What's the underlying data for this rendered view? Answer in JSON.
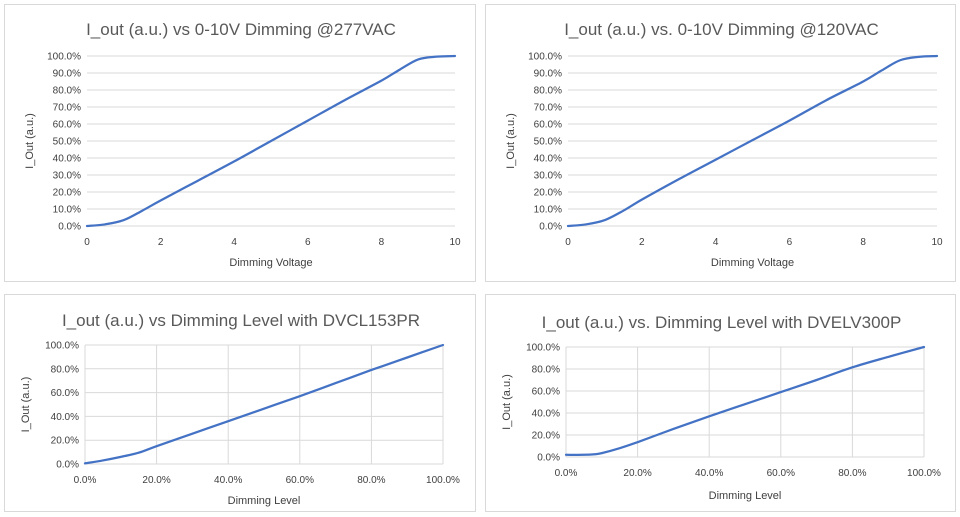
{
  "chart_data": [
    {
      "type": "line",
      "title": "I_out (a.u.) vs 0-10V Dimming @277VAC",
      "xlabel": "Dimming Voltage",
      "ylabel": "I_Out (a.u.)",
      "xlim": [
        0,
        10
      ],
      "ylim": [
        0,
        100
      ],
      "xticks": [
        "0",
        "2",
        "4",
        "6",
        "8",
        "10"
      ],
      "yticks": [
        "0.0%",
        "10.0%",
        "20.0%",
        "30.0%",
        "40.0%",
        "50.0%",
        "60.0%",
        "70.0%",
        "80.0%",
        "90.0%",
        "100.0%"
      ],
      "grid": "horizontal",
      "legend": "none",
      "series": [
        {
          "x": [
            0,
            0.5,
            1,
            1.5,
            2,
            3,
            4,
            5,
            6,
            7,
            8,
            8.5,
            9,
            9.5,
            10
          ],
          "y": [
            0,
            1,
            3.5,
            9,
            15,
            26.5,
            38,
            50,
            62,
            74,
            85.5,
            92,
            98,
            99.6,
            100
          ]
        }
      ]
    },
    {
      "type": "line",
      "title": "I_out (a.u.) vs. 0-10V Dimming @120VAC",
      "xlabel": "Dimming Voltage",
      "ylabel": "I_Out (a.u.)",
      "xlim": [
        0,
        10
      ],
      "ylim": [
        0,
        100
      ],
      "xticks": [
        "0",
        "2",
        "4",
        "6",
        "8",
        "10"
      ],
      "yticks": [
        "0.0%",
        "10.0%",
        "20.0%",
        "30.0%",
        "40.0%",
        "50.0%",
        "60.0%",
        "70.0%",
        "80.0%",
        "90.0%",
        "100.0%"
      ],
      "grid": "horizontal",
      "legend": "none",
      "series": [
        {
          "x": [
            0,
            0.5,
            1,
            1.5,
            2,
            3,
            4,
            5,
            6,
            7,
            8,
            8.5,
            9,
            9.5,
            10
          ],
          "y": [
            0,
            1,
            3.5,
            9,
            15.5,
            27.5,
            39,
            50.5,
            62,
            74,
            85,
            91.5,
            97.5,
            99.5,
            100
          ]
        }
      ]
    },
    {
      "type": "line",
      "title": "I_out (a.u.) vs Dimming Level with DVCL153PR",
      "xlabel": "Dimming Level",
      "ylabel": "I_Out (a.u.)",
      "xlim": [
        0,
        100
      ],
      "ylim": [
        0,
        100
      ],
      "xticks": [
        "0.0%",
        "20.0%",
        "40.0%",
        "60.0%",
        "80.0%",
        "100.0%"
      ],
      "yticks": [
        "0.0%",
        "20.0%",
        "40.0%",
        "60.0%",
        "80.0%",
        "100.0%"
      ],
      "grid": "both",
      "legend": "none",
      "series": [
        {
          "x": [
            0,
            5,
            10,
            15,
            20,
            30,
            40,
            50,
            60,
            70,
            80,
            90,
            100
          ],
          "y": [
            0.5,
            3,
            6,
            9.5,
            15,
            25.5,
            36,
            46.5,
            57,
            68,
            79,
            89.5,
            100
          ]
        }
      ]
    },
    {
      "type": "line",
      "title": "I_out (a.u.) vs. Dimming Level with DVELV300P",
      "xlabel": "Dimming Level",
      "ylabel": "I_Out (a.u.)",
      "xlim": [
        0,
        100
      ],
      "ylim": [
        0,
        100
      ],
      "xticks": [
        "0.0%",
        "20.0%",
        "40.0%",
        "60.0%",
        "80.0%",
        "100.0%"
      ],
      "yticks": [
        "0.0%",
        "20.0%",
        "40.0%",
        "60.0%",
        "80.0%",
        "100.0%"
      ],
      "grid": "both",
      "legend": "none",
      "series": [
        {
          "x": [
            0,
            5,
            8,
            10,
            15,
            20,
            30,
            40,
            50,
            60,
            70,
            80,
            90,
            100
          ],
          "y": [
            2,
            2,
            2.5,
            3.5,
            8,
            13.5,
            25.5,
            37,
            48,
            59,
            70,
            81.5,
            91,
            100
          ]
        }
      ]
    }
  ]
}
